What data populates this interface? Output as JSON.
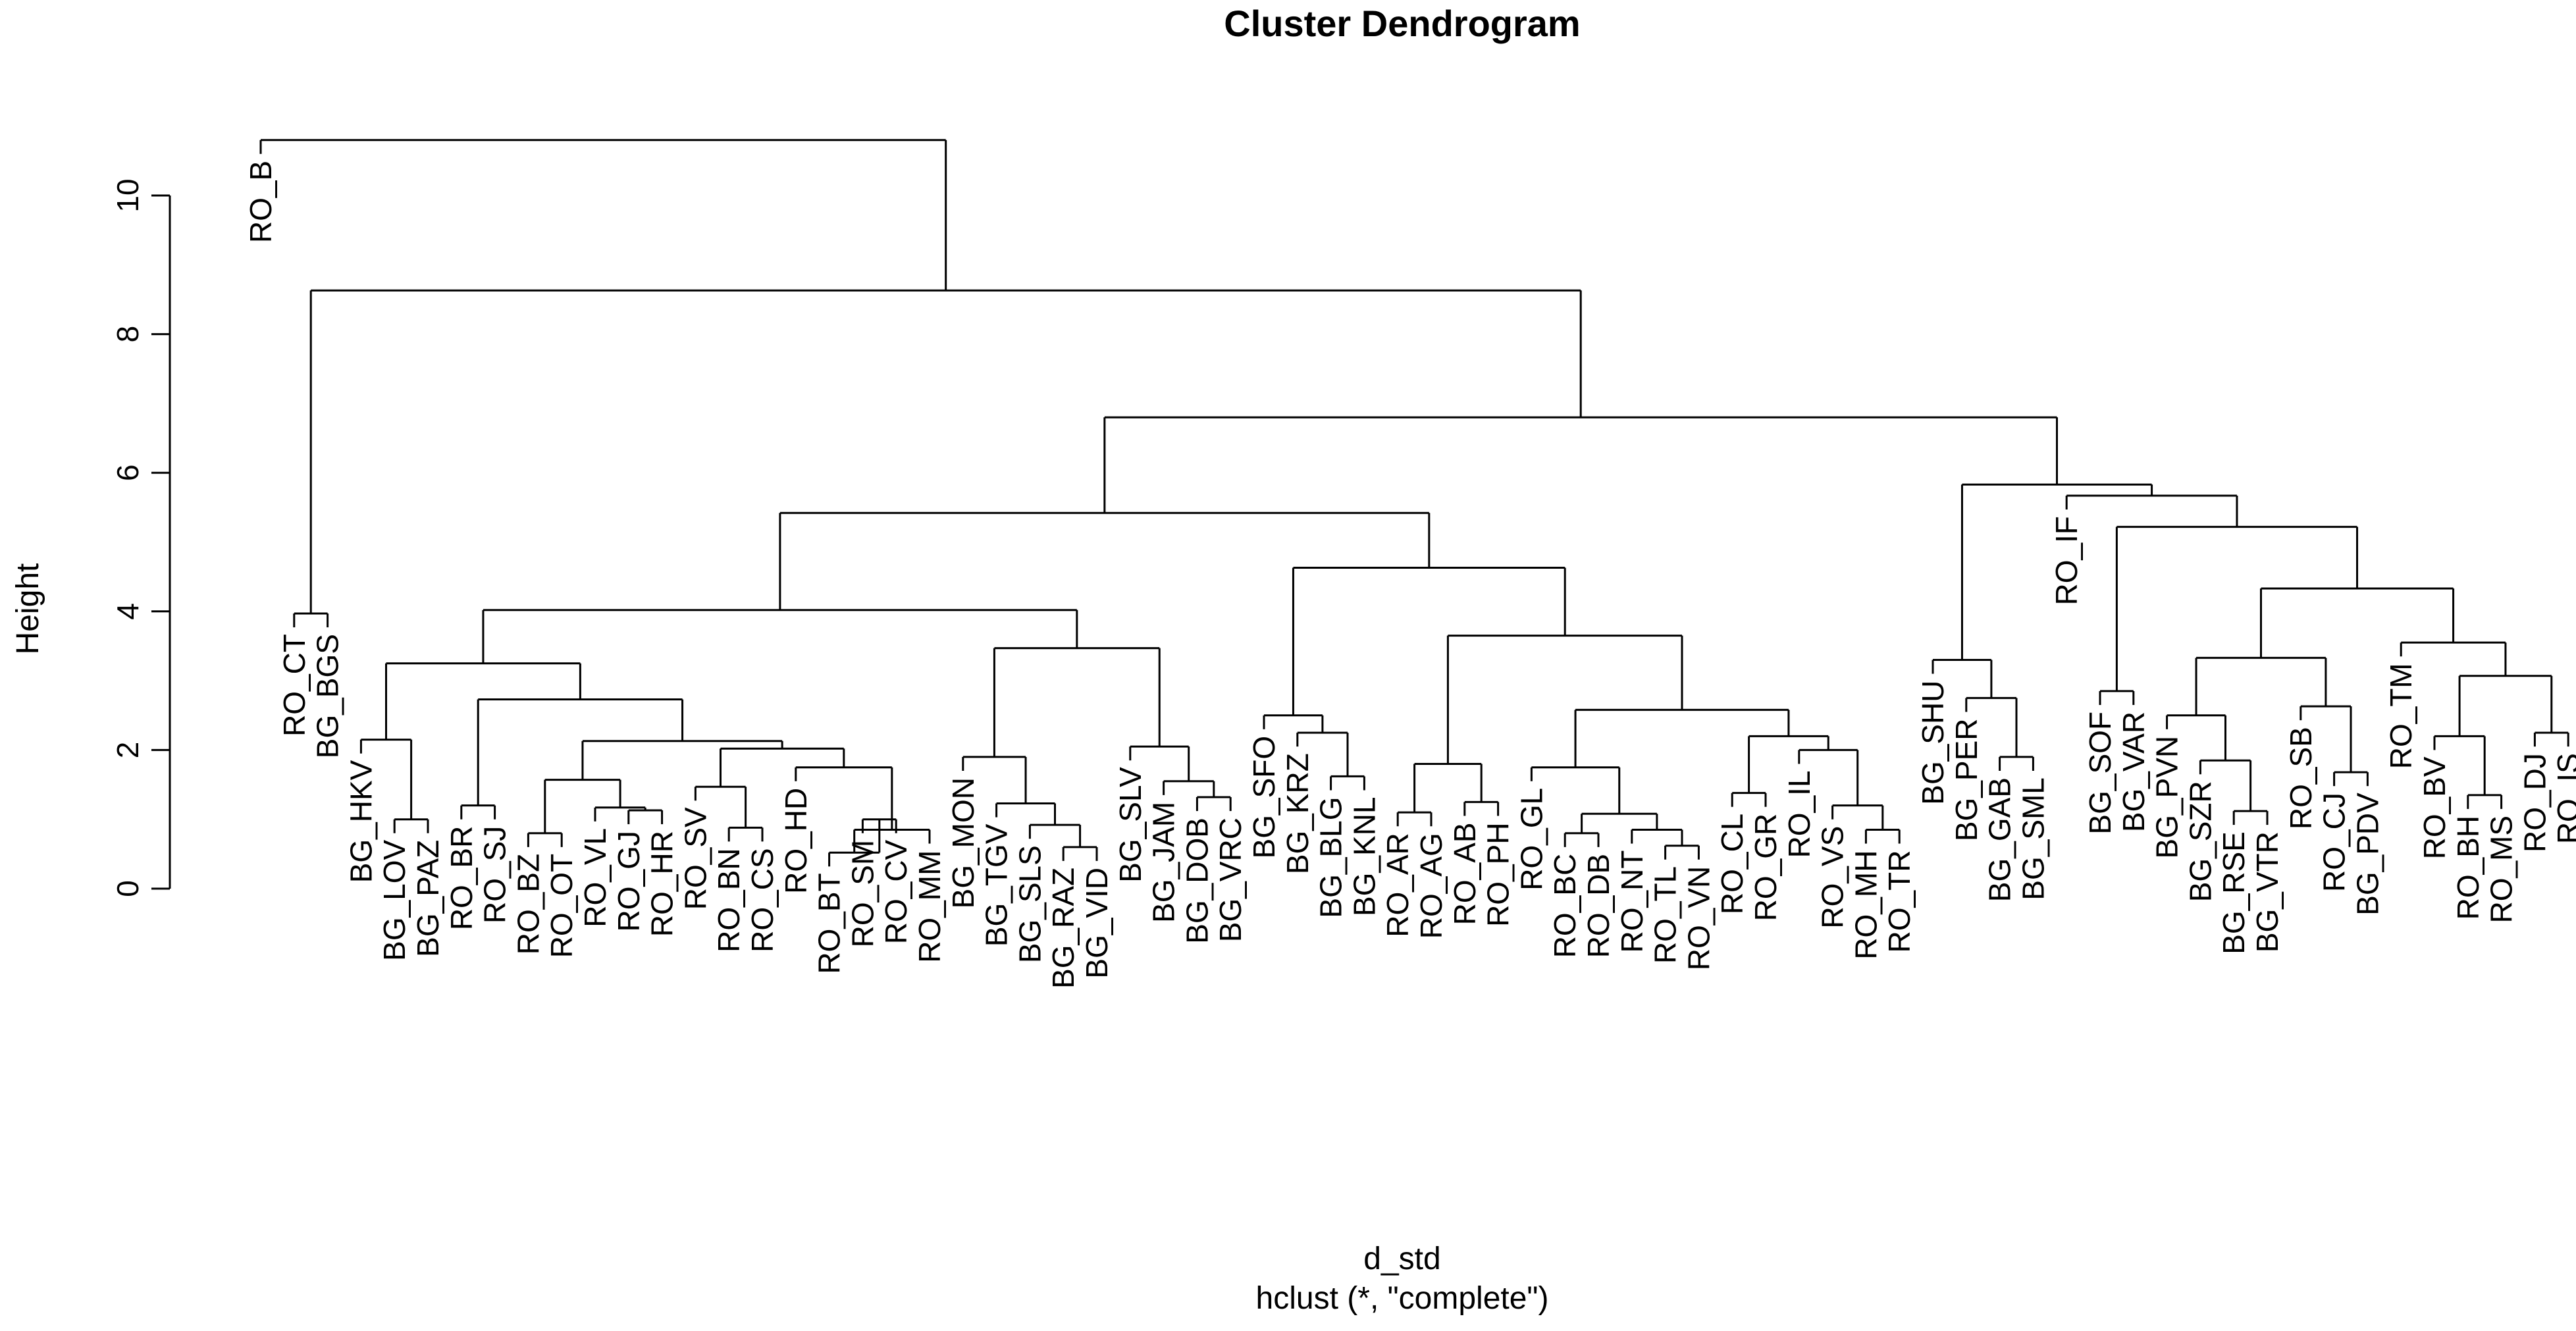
{
  "chart_data": {
    "type": "dendrogram",
    "title": "Cluster Dendrogram",
    "xlabel": "d_std",
    "sub": "hclust (*, \"complete\")",
    "ylabel": "Height",
    "ylim": [
      0,
      11
    ],
    "yticks": [
      0,
      2,
      4,
      6,
      8,
      10
    ],
    "labels": [
      "RO_B",
      "RO_CT",
      "BG_BGS",
      "BG_HKV",
      "BG_LOV",
      "BG_PAZ",
      "RO_BR",
      "RO_SJ",
      "RO_BZ",
      "RO_OT",
      "RO_VL",
      "RO_GJ",
      "RO_HR",
      "RO_SV",
      "RO_BN",
      "RO_CS",
      "RO_HD",
      "RO_BT",
      "RO_SM",
      "RO_CV",
      "RO_MM",
      "BG_MON",
      "BG_TGV",
      "BG_SLS",
      "BG_RAZ",
      "BG_VID",
      "BG_SLV",
      "BG_JAM",
      "BG_DOB",
      "BG_VRC",
      "BG_SFO",
      "BG_KRZ",
      "BG_BLG",
      "BG_KNL",
      "RO_AR",
      "RO_AG",
      "RO_AB",
      "RO_PH",
      "RO_GL",
      "RO_BC",
      "RO_DB",
      "RO_NT",
      "RO_TL",
      "RO_VN",
      "RO_CL",
      "RO_GR",
      "RO_IL",
      "RO_VS",
      "RO_MH",
      "RO_TR",
      "BG_SHU",
      "BG_PER",
      "BG_GAB",
      "BG_SML",
      "RO_IF",
      "BG_SOF",
      "BG_VAR",
      "BG_PVN",
      "BG_SZR",
      "BG_RSE",
      "BG_VTR",
      "RO_SB",
      "RO_CJ",
      "BG_PDV",
      "RO_TM",
      "RO_BV",
      "RO_BH",
      "RO_MS",
      "RO_DJ",
      "RO_IS"
    ],
    "merges": [
      [
        "RO_CT",
        "BG_BGS",
        3.97
      ],
      [
        "BG_LOV",
        "BG_PAZ",
        1.0
      ],
      [
        "BG_HKV",
        2,
        2.15
      ],
      [
        "RO_BR",
        "RO_SJ",
        1.2
      ],
      [
        "RO_BZ",
        "RO_OT",
        0.8
      ],
      [
        "RO_GJ",
        "RO_HR",
        1.13
      ],
      [
        "RO_VL",
        6,
        1.17
      ],
      [
        5,
        7,
        1.57
      ],
      [
        "RO_BN",
        "RO_CS",
        0.88
      ],
      [
        "RO_SV",
        9,
        1.47
      ],
      [
        "RO_SM",
        "RO_CV",
        1.0
      ],
      [
        "RO_BT",
        11,
        0.52
      ],
      [
        12,
        "RO_MM",
        0.85
      ],
      [
        "RO_HD",
        13,
        1.75
      ],
      [
        10,
        14,
        2.02
      ],
      [
        8,
        15,
        2.13
      ],
      [
        4,
        16,
        2.73
      ],
      [
        3,
        17,
        3.25
      ],
      [
        "BG_RAZ",
        "BG_VID",
        0.6
      ],
      [
        "BG_SLS",
        19,
        0.92
      ],
      [
        "BG_TGV",
        20,
        1.23
      ],
      [
        "BG_MON",
        21,
        1.9
      ],
      [
        "BG_DOB",
        "BG_VRC",
        1.32
      ],
      [
        "BG_JAM",
        23,
        1.55
      ],
      [
        "BG_SLV",
        24,
        2.05
      ],
      [
        22,
        25,
        3.47
      ],
      [
        18,
        26,
        4.02
      ],
      [
        "BG_BLG",
        "BG_KNL",
        1.62
      ],
      [
        "BG_KRZ",
        28,
        2.25
      ],
      [
        "BG_SFO",
        29,
        2.5
      ],
      [
        "RO_AR",
        "RO_AG",
        1.1
      ],
      [
        "RO_AB",
        "RO_PH",
        1.25
      ],
      [
        31,
        32,
        1.8
      ],
      [
        "RO_BC",
        "RO_DB",
        0.8
      ],
      [
        "RO_TL",
        "RO_VN",
        0.62
      ],
      [
        "RO_NT",
        35,
        0.85
      ],
      [
        34,
        36,
        1.08
      ],
      [
        "RO_GL",
        37,
        1.75
      ],
      [
        "RO_CL",
        "RO_GR",
        1.38
      ],
      [
        "RO_MH",
        "RO_TR",
        0.85
      ],
      [
        "RO_VS",
        40,
        1.2
      ],
      [
        "RO_IL",
        41,
        2.0
      ],
      [
        39,
        42,
        2.2
      ],
      [
        38,
        43,
        2.58
      ],
      [
        33,
        44,
        3.65
      ],
      [
        30,
        45,
        4.63
      ],
      [
        27,
        46,
        5.42
      ],
      [
        "BG_GAB",
        "BG_SML",
        1.9
      ],
      [
        "BG_PER",
        48,
        2.75
      ],
      [
        "BG_SHU",
        49,
        3.3
      ],
      [
        "BG_SOF",
        "BG_VAR",
        2.85
      ],
      [
        "BG_RSE",
        "BG_VTR",
        1.12
      ],
      [
        "BG_SZR",
        52,
        1.85
      ],
      [
        "BG_PVN",
        53,
        2.5
      ],
      [
        "RO_CJ",
        "BG_PDV",
        1.68
      ],
      [
        "RO_SB",
        55,
        2.63
      ],
      [
        54,
        56,
        3.33
      ],
      [
        "RO_BH",
        "RO_MS",
        1.35
      ],
      [
        "RO_BV",
        58,
        2.2
      ],
      [
        "RO_DJ",
        "RO_IS",
        2.25
      ],
      [
        59,
        60,
        3.07
      ],
      [
        "RO_TM",
        61,
        3.55
      ],
      [
        57,
        62,
        4.33
      ],
      [
        51,
        63,
        5.22
      ],
      [
        "RO_IF",
        64,
        5.67
      ],
      [
        50,
        65,
        5.83
      ],
      [
        47,
        66,
        6.8
      ],
      [
        1,
        67,
        8.63
      ],
      [
        "RO_B",
        68,
        10.8
      ]
    ]
  }
}
